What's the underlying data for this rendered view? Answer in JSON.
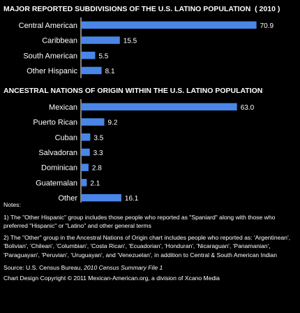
{
  "colors": {
    "bar": "#4a86e8",
    "background": "#000000",
    "text": "#ffffff"
  },
  "chart_data": [
    {
      "type": "bar",
      "orientation": "horizontal",
      "title": "MAJOR REPORTED SUBDIVISIONS OF THE U.S. LATINO POPULATION  ( 2010 )",
      "categories": [
        "Central American",
        "Caribbean",
        "South American",
        "Other Hispanic"
      ],
      "values": [
        70.9,
        15.5,
        5.5,
        8.1
      ],
      "value_labels": [
        "70.9",
        "15.5",
        "5.5",
        "8.1"
      ],
      "xlim": [
        0,
        72
      ],
      "grid": false,
      "legend": "none"
    },
    {
      "type": "bar",
      "orientation": "horizontal",
      "title": "ANCESTRAL NATIONS OF ORIGIN WITHIN THE U.S. LATINO POPULATION",
      "categories": [
        "Mexican",
        "Puerto Rican",
        "Cuban",
        "Salvadoran",
        "Dominican",
        "Guatemalan",
        "Other"
      ],
      "values": [
        63.0,
        9.2,
        3.5,
        3.3,
        2.8,
        2.1,
        16.1
      ],
      "value_labels": [
        "63.0",
        "9.2",
        "3.5",
        "3.3",
        "2.8",
        "2.1",
        "16.1"
      ],
      "xlim": [
        0,
        72
      ],
      "grid": false,
      "legend": "none"
    }
  ],
  "notes": {
    "heading": "Notes:",
    "note1": "1) The \"Other Hispanic\" group includes those people who reported as \"Spaniard\" along with those who preferred \"Hispanic\" or \"Latino\" and other general terms",
    "note2": "2) The \"Other\" group in the Ancestral Nations of Origin chart includes people who reported as: 'Argentinean', 'Bolivian', 'Chilean', 'Columbian', 'Costa Rican', 'Ecuadorian', 'Honduran', 'Nicaraguan', 'Panamanian', 'Paraguayan', 'Peruvian', 'Uruguayan', and 'Venezuelan', in addition to Central & South American Indian",
    "source_prefix": "Source: U.S. Census Bureau, ",
    "source_title": "2010 Census Summary File 1",
    "copyright": "Chart Design Copyright © 2011 Mexican-American.org, a division of Xcano Media"
  }
}
